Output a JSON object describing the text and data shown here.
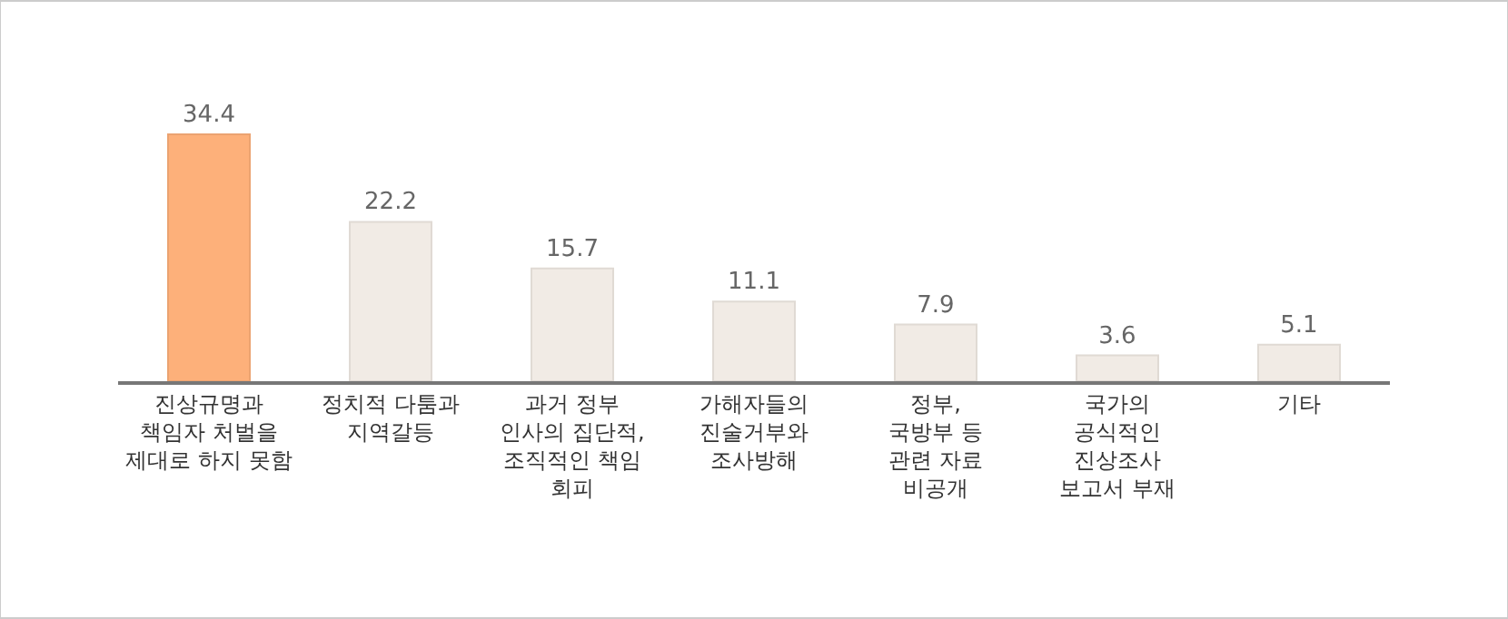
{
  "chart_data": {
    "type": "bar",
    "categories": [
      "진상규명과\n책임자 처벌을\n제대로 하지 못함",
      "정치적 다툼과\n지역갈등",
      "과거 정부\n인사의 집단적,\n조직적인 책임\n회피",
      "가해자들의\n진술거부와\n조사방해",
      "정부,\n국방부 등\n관련 자료\n비공개",
      "국가의\n공식적인\n진상조사\n보고서 부재",
      "기타"
    ],
    "values": [
      34.4,
      22.2,
      15.7,
      11.1,
      7.9,
      3.6,
      5.1
    ],
    "colors": [
      "#fdb07a",
      "#f1ebe5",
      "#f1ebe5",
      "#f1ebe5",
      "#f1ebe5",
      "#f1ebe5",
      "#f1ebe5"
    ],
    "data_labels": true
  }
}
